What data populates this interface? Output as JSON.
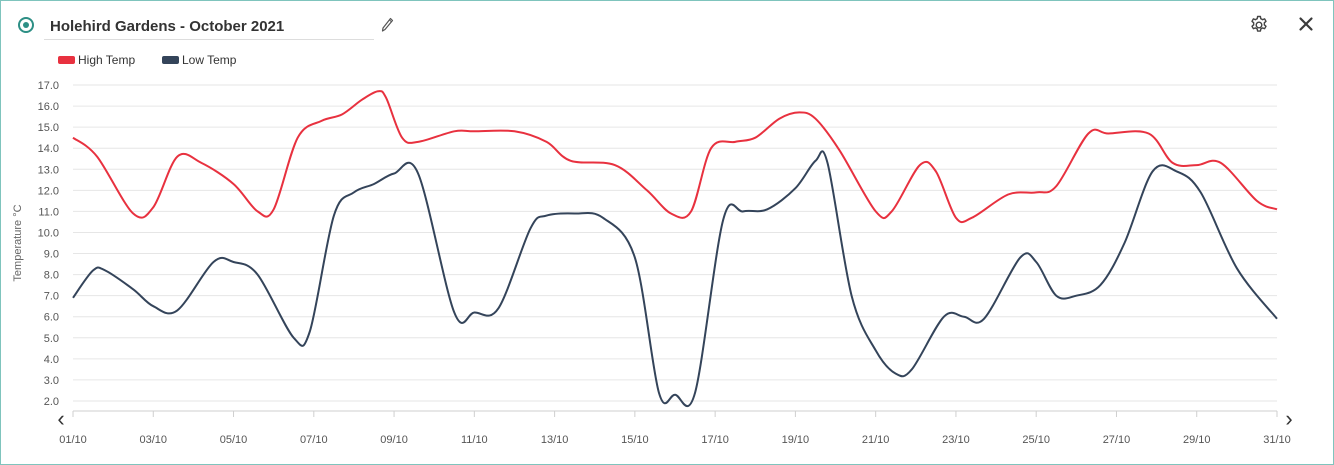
{
  "header": {
    "title": "Holehird Gardens - October 2021",
    "edit_icon": "pencil-icon",
    "settings_icon": "gear-icon",
    "close_icon": "close-icon"
  },
  "colors": {
    "accent": "#2d8f85",
    "high": "#e8313f",
    "low": "#34445a",
    "grid": "#e6e6e6"
  },
  "nav": {
    "prev_label": "‹",
    "next_label": "›"
  },
  "chart_data": {
    "type": "line",
    "ylabel": "Temperature °C",
    "xlabel": "",
    "ylim": [
      2.0,
      17.0
    ],
    "y_ticks": [
      "2.0",
      "3.0",
      "4.0",
      "5.0",
      "6.0",
      "7.0",
      "8.0",
      "9.0",
      "10.0",
      "11.0",
      "12.0",
      "13.0",
      "14.0",
      "15.0",
      "16.0",
      "17.0"
    ],
    "x_tick_labels": [
      "01/10",
      "03/10",
      "05/10",
      "07/10",
      "09/10",
      "11/10",
      "13/10",
      "15/10",
      "17/10",
      "19/10",
      "21/10",
      "23/10",
      "25/10",
      "27/10",
      "29/10",
      "31/10"
    ],
    "legend_position": "top-left",
    "grid": true,
    "series": [
      {
        "name": "High Temp",
        "color": "#e8313f",
        "points": [
          [
            1.0,
            14.5
          ],
          [
            1.6,
            13.6
          ],
          [
            2.5,
            10.9
          ],
          [
            3.0,
            11.2
          ],
          [
            3.6,
            13.6
          ],
          [
            4.2,
            13.3
          ],
          [
            5.0,
            12.3
          ],
          [
            5.6,
            11.0
          ],
          [
            6.0,
            11.1
          ],
          [
            6.6,
            14.5
          ],
          [
            7.2,
            15.3
          ],
          [
            7.7,
            15.6
          ],
          [
            8.2,
            16.3
          ],
          [
            8.6,
            16.7
          ],
          [
            8.8,
            16.4
          ],
          [
            9.2,
            14.5
          ],
          [
            9.6,
            14.3
          ],
          [
            10.5,
            14.8
          ],
          [
            11.0,
            14.8
          ],
          [
            12.0,
            14.8
          ],
          [
            12.8,
            14.3
          ],
          [
            13.4,
            13.4
          ],
          [
            14.5,
            13.2
          ],
          [
            15.3,
            12.0
          ],
          [
            15.9,
            10.9
          ],
          [
            16.4,
            11.0
          ],
          [
            16.9,
            14.0
          ],
          [
            17.5,
            14.3
          ],
          [
            18.0,
            14.5
          ],
          [
            18.6,
            15.4
          ],
          [
            19.1,
            15.7
          ],
          [
            19.5,
            15.4
          ],
          [
            20.1,
            13.9
          ],
          [
            21.0,
            11.0
          ],
          [
            21.4,
            11.0
          ],
          [
            22.1,
            13.2
          ],
          [
            22.5,
            12.9
          ],
          [
            23.0,
            10.7
          ],
          [
            23.4,
            10.7
          ],
          [
            24.3,
            11.8
          ],
          [
            25.0,
            11.9
          ],
          [
            25.5,
            12.2
          ],
          [
            26.3,
            14.7
          ],
          [
            26.8,
            14.7
          ],
          [
            27.8,
            14.7
          ],
          [
            28.4,
            13.3
          ],
          [
            29.0,
            13.2
          ],
          [
            29.6,
            13.3
          ],
          [
            30.5,
            11.5
          ],
          [
            31.0,
            11.1
          ]
        ]
      },
      {
        "name": "Low Temp",
        "color": "#34445a",
        "points": [
          [
            1.0,
            6.9
          ],
          [
            1.5,
            8.2
          ],
          [
            1.8,
            8.2
          ],
          [
            2.5,
            7.3
          ],
          [
            3.0,
            6.5
          ],
          [
            3.6,
            6.3
          ],
          [
            4.5,
            8.6
          ],
          [
            5.0,
            8.6
          ],
          [
            5.6,
            8.0
          ],
          [
            6.5,
            5.0
          ],
          [
            6.9,
            5.3
          ],
          [
            7.5,
            10.8
          ],
          [
            8.0,
            11.9
          ],
          [
            8.5,
            12.3
          ],
          [
            9.0,
            12.8
          ],
          [
            9.6,
            12.8
          ],
          [
            10.5,
            6.2
          ],
          [
            11.0,
            6.2
          ],
          [
            11.6,
            6.4
          ],
          [
            12.4,
            10.2
          ],
          [
            12.8,
            10.8
          ],
          [
            13.5,
            10.9
          ],
          [
            14.2,
            10.7
          ],
          [
            15.0,
            8.8
          ],
          [
            15.6,
            2.4
          ],
          [
            16.0,
            2.3
          ],
          [
            16.5,
            2.4
          ],
          [
            17.2,
            10.6
          ],
          [
            17.7,
            11.0
          ],
          [
            18.3,
            11.1
          ],
          [
            19.0,
            12.1
          ],
          [
            19.5,
            13.4
          ],
          [
            19.8,
            13.3
          ],
          [
            20.4,
            7.0
          ],
          [
            21.0,
            4.4
          ],
          [
            21.5,
            3.3
          ],
          [
            21.9,
            3.5
          ],
          [
            22.7,
            6.0
          ],
          [
            23.2,
            6.0
          ],
          [
            23.7,
            5.9
          ],
          [
            24.6,
            8.8
          ],
          [
            25.0,
            8.6
          ],
          [
            25.5,
            7.0
          ],
          [
            26.0,
            7.0
          ],
          [
            26.6,
            7.5
          ],
          [
            27.2,
            9.5
          ],
          [
            27.9,
            12.9
          ],
          [
            28.5,
            12.9
          ],
          [
            29.1,
            11.9
          ],
          [
            30.0,
            8.3
          ],
          [
            31.0,
            5.9
          ]
        ]
      }
    ]
  }
}
